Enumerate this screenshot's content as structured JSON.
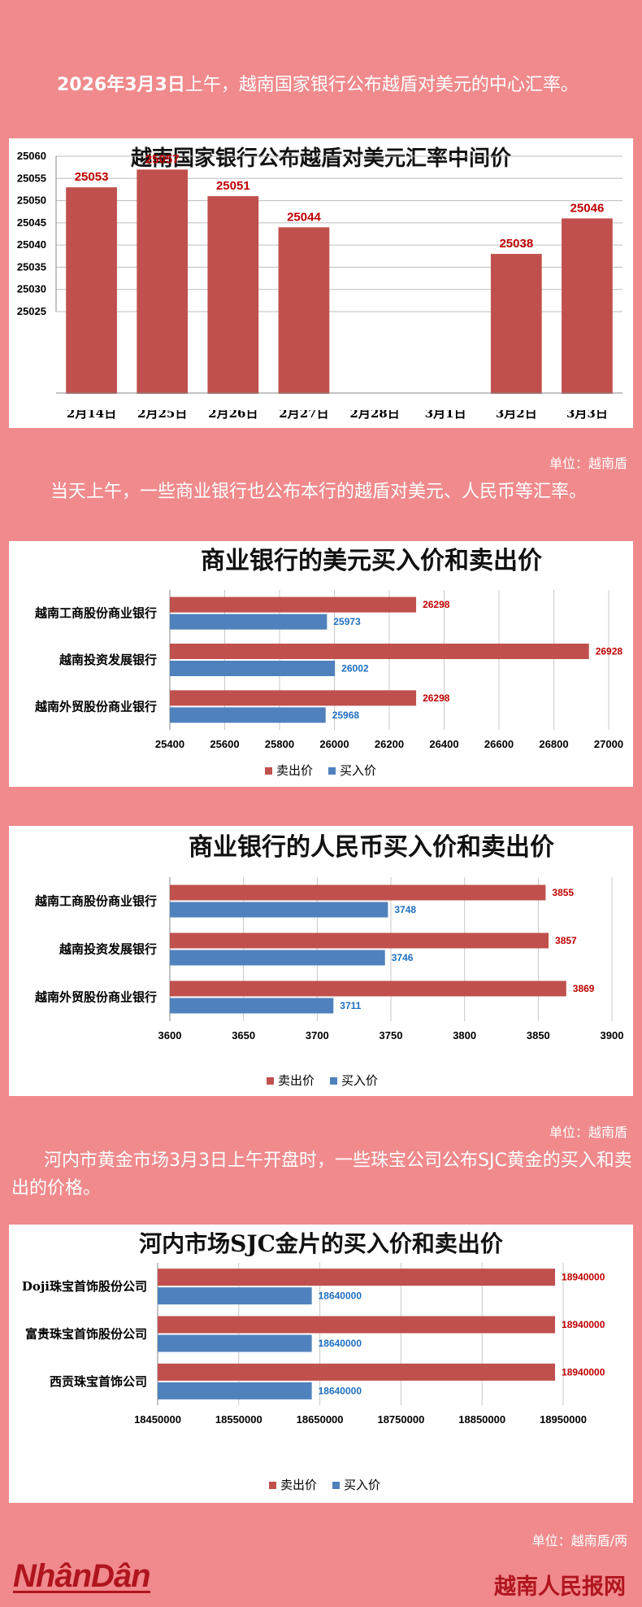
{
  "intro1": {
    "lead": "2026年3月3日",
    "rest": "上午，越南国家银行公布越盾对美元的中心汇率。"
  },
  "unit1": "单位：越南盾",
  "intro2": "当天上午，一些商业银行也公布本行的越盾对美元、人民币等汇率。",
  "unit2": "单位：越南盾",
  "intro3": "河内市黄金市场3月3日上午开盘时，一些珠宝公司公布SJC黄金的买入和卖出的价格。",
  "unit3": "单位：越南盾/两",
  "footer": {
    "logo": "NhânDân",
    "site": "越南人民报网"
  },
  "colors": {
    "sell": "#c0504d",
    "buy": "#4f81bd",
    "background": "#f08a8c"
  },
  "legend": {
    "sell": "卖出价",
    "buy": "买入价"
  },
  "chart_data": [
    {
      "type": "bar",
      "title": "越南国家银行公布越盾对美元汇率中间价",
      "categories": [
        "2月14日",
        "2月25日",
        "2月26日",
        "2月27日",
        "2月28日",
        "3月1日",
        "3月2日",
        "3月3日"
      ],
      "values": [
        25053,
        25057,
        25051,
        25044,
        null,
        null,
        25038,
        25046
      ],
      "ylim": [
        25025,
        25060
      ],
      "yticks": [
        25025,
        25030,
        25035,
        25040,
        25045,
        25050,
        25055,
        25060
      ],
      "grid": true
    },
    {
      "type": "bar",
      "orientation": "horizontal",
      "title": "商业银行的美元买入价和卖出价",
      "categories": [
        "越南工商股份商业银行",
        "越南投资发展银行",
        "越南外贸股份商业银行"
      ],
      "series": [
        {
          "name": "卖出价",
          "values": [
            26298,
            26928,
            26298
          ]
        },
        {
          "name": "买入价",
          "values": [
            25973,
            26002,
            25968
          ]
        }
      ],
      "xlim": [
        25400,
        27000
      ],
      "xticks": [
        25400,
        25600,
        25800,
        26000,
        26200,
        26400,
        26600,
        26800,
        27000
      ],
      "legend_position": "bottom",
      "grid": true
    },
    {
      "type": "bar",
      "orientation": "horizontal",
      "title": "商业银行的人民币买入价和卖出价",
      "categories": [
        "越南工商股份商业银行",
        "越南投资发展银行",
        "越南外贸股份商业银行"
      ],
      "series": [
        {
          "name": "卖出价",
          "values": [
            3855,
            3857,
            3869
          ]
        },
        {
          "name": "买入价",
          "values": [
            3748,
            3746,
            3711
          ]
        }
      ],
      "xlim": [
        3600,
        3900
      ],
      "xticks": [
        3600,
        3650,
        3700,
        3750,
        3800,
        3850,
        3900
      ],
      "legend_position": "bottom",
      "grid": true
    },
    {
      "type": "bar",
      "orientation": "horizontal",
      "title": "河内市场SJC金片的买入价和卖出价",
      "categories": [
        "Doji珠宝首饰股份公司",
        "富贵珠宝首饰股份公司",
        "西贡珠宝首饰公司"
      ],
      "series": [
        {
          "name": "卖出价",
          "values": [
            18940000,
            18940000,
            18940000
          ]
        },
        {
          "name": "买入价",
          "values": [
            18640000,
            18640000,
            18640000
          ]
        }
      ],
      "xlim": [
        18450000,
        18950000
      ],
      "xticks": [
        18450000,
        18550000,
        18650000,
        18750000,
        18850000,
        18950000
      ],
      "legend_position": "bottom",
      "grid": true
    }
  ]
}
